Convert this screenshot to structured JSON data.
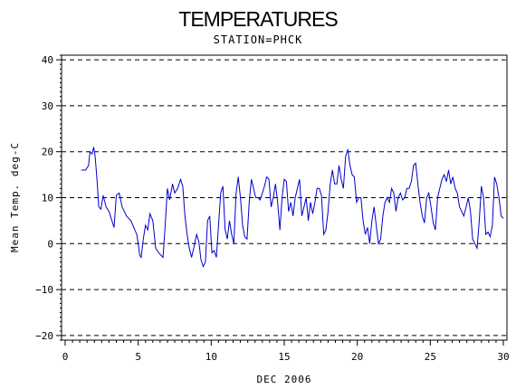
{
  "chart_data": {
    "type": "line",
    "title": "TEMPERATURES",
    "subtitle": "STATION=PHCK",
    "xlabel": "DEC 2006",
    "ylabel": "Mean Temp. deg-C",
    "xlim": [
      0,
      30
    ],
    "ylim": [
      -21,
      41
    ],
    "x_ticks": [
      0,
      5,
      10,
      15,
      20,
      25,
      30
    ],
    "y_ticks": [
      -20,
      -10,
      0,
      10,
      20,
      30,
      40
    ],
    "y_grid": [
      -20,
      -10,
      0,
      10,
      20,
      30,
      40
    ],
    "x_minor_step": 0.5,
    "y_minor_step": 1,
    "grid": "horizontal-dashed",
    "colors": {
      "series": "#0000cc"
    },
    "series": [
      {
        "x": [
          1.1,
          1.4,
          1.6,
          1.7,
          1.85,
          1.95,
          2.05,
          2.2,
          2.3,
          2.45,
          2.6,
          2.8,
          3.0,
          3.2,
          3.35,
          3.5,
          3.7,
          3.9,
          4.2,
          4.5,
          4.7,
          4.9,
          5.0,
          5.1,
          5.2,
          5.35,
          5.5,
          5.65,
          5.8,
          6.0,
          6.2,
          6.4,
          6.55,
          6.7,
          6.85,
          7.0,
          7.15,
          7.35,
          7.5,
          7.7,
          7.9,
          8.05,
          8.2,
          8.35,
          8.5,
          8.65,
          8.8,
          9.0,
          9.15,
          9.3,
          9.45,
          9.6,
          9.75,
          9.9,
          10.05,
          10.2,
          10.35,
          10.5,
          10.65,
          10.8,
          10.95,
          11.1,
          11.25,
          11.4,
          11.55,
          11.7,
          11.85,
          12.0,
          12.15,
          12.3,
          12.45,
          12.6,
          12.75,
          12.9,
          13.05,
          13.2,
          13.35,
          13.5,
          13.65,
          13.8,
          13.95,
          14.1,
          14.25,
          14.4,
          14.55,
          14.7,
          14.85,
          15.0,
          15.15,
          15.3,
          15.45,
          15.6,
          15.75,
          15.9,
          16.05,
          16.2,
          16.35,
          16.5,
          16.65,
          16.8,
          16.95,
          17.1,
          17.25,
          17.4,
          17.55,
          17.7,
          17.85,
          18.0,
          18.15,
          18.3,
          18.45,
          18.6,
          18.75,
          18.9,
          19.05,
          19.2,
          19.35,
          19.5,
          19.65,
          19.8,
          19.95,
          20.1,
          20.25,
          20.4,
          20.55,
          20.7,
          20.85,
          21.0,
          21.15,
          21.3,
          21.45,
          21.6,
          21.75,
          21.9,
          22.05,
          22.2,
          22.35,
          22.5,
          22.65,
          22.8,
          22.95,
          23.1,
          23.25,
          23.4,
          23.55,
          23.7,
          23.85,
          24.0,
          24.15,
          24.3,
          24.45,
          24.6,
          24.75,
          24.9,
          25.05,
          25.2,
          25.35,
          25.5,
          25.65,
          25.8,
          25.95,
          26.1,
          26.25,
          26.4,
          26.55,
          26.7,
          26.85,
          27.0,
          27.15,
          27.3,
          27.45,
          27.6,
          27.75,
          27.9,
          28.05,
          28.2,
          28.35,
          28.5,
          28.65,
          28.8,
          28.95,
          29.1,
          29.25,
          29.4,
          29.55,
          29.7,
          29.85,
          30.0
        ],
        "y": [
          16,
          16,
          17,
          20,
          19.5,
          21,
          19,
          13,
          8,
          7.5,
          10.5,
          8,
          7,
          5,
          3.5,
          10.5,
          11,
          8,
          6,
          5,
          3.5,
          2,
          0,
          -2.5,
          -3,
          1,
          4,
          3,
          6.5,
          5,
          -1,
          -2,
          -2.5,
          -3,
          4,
          12,
          9.5,
          13,
          11,
          12,
          14,
          12.5,
          6,
          2,
          -1,
          -3,
          -1,
          2,
          0.5,
          -3.5,
          -5,
          -4,
          5,
          6,
          -2,
          -1.5,
          -3,
          4,
          11,
          12.5,
          3,
          1,
          5,
          2,
          0,
          11,
          14.5,
          10,
          4,
          1.5,
          1,
          9,
          14,
          12,
          10,
          10,
          9.5,
          11,
          12.5,
          14.5,
          14,
          8,
          10,
          13,
          9,
          3,
          10,
          14,
          13.5,
          7,
          9,
          6,
          10,
          12,
          14,
          6,
          8,
          10,
          5,
          9,
          6.5,
          9,
          12,
          12,
          10.5,
          2,
          3,
          7,
          13,
          16,
          13,
          13,
          17,
          14,
          12,
          19,
          20.5,
          17,
          15,
          14.5,
          9,
          10,
          10,
          5,
          2,
          3.5,
          0,
          5,
          8,
          4,
          0,
          1,
          6,
          9,
          10,
          9,
          12,
          11,
          7,
          10,
          11,
          9.5,
          10,
          12,
          12,
          13.5,
          17,
          17.5,
          13,
          9,
          6,
          4.5,
          10,
          11,
          8,
          4.5,
          3,
          10,
          12,
          14,
          15,
          13.5,
          16,
          13,
          14.5,
          12,
          11,
          8,
          7,
          6,
          8,
          10,
          7,
          1,
          0,
          -1,
          5,
          12.5,
          10,
          2,
          2.5,
          1.5,
          4,
          14.5,
          13,
          10,
          6,
          5.5
        ]
      }
    ]
  }
}
